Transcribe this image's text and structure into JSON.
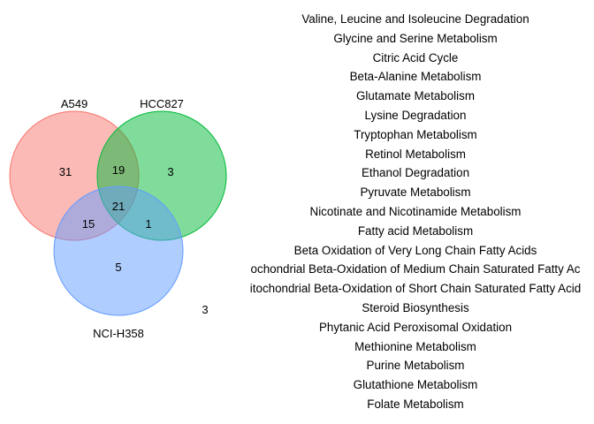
{
  "colors": {
    "a549": "#F8766D",
    "hcc827": "#00BA38",
    "nci_h358": "#619CFF"
  },
  "sets": {
    "a549": "A549",
    "hcc827": "HCC827",
    "nci_h358": "NCI-H358"
  },
  "regions": {
    "a549_only": "31",
    "a549_hcc827": "19",
    "hcc827_only": "3",
    "all_three": "21",
    "a549_nci": "15",
    "hcc827_nci": "1",
    "nci_only": "5",
    "outside": "3"
  },
  "pathways": [
    "Valine, Leucine and Isoleucine Degradation",
    "Glycine and Serine Metabolism",
    "Citric Acid Cycle",
    "Beta-Alanine Metabolism",
    "Glutamate Metabolism",
    "Lysine Degradation",
    "Tryptophan Metabolism",
    "Retinol Metabolism",
    "Ethanol Degradation",
    "Pyruvate Metabolism",
    "Nicotinate and Nicotinamide Metabolism",
    "Fatty acid Metabolism",
    "Beta Oxidation of Very Long Chain Fatty Acids",
    "ochondrial Beta-Oxidation of Medium Chain Saturated Fatty Ac",
    "itochondrial Beta-Oxidation of Short Chain Saturated Fatty Acid",
    "Steroid Biosynthesis",
    "Phytanic Acid Peroxisomal Oxidation",
    "Methionine Metabolism",
    "Purine Metabolism",
    "Glutathione Metabolism",
    "Folate Metabolism"
  ]
}
